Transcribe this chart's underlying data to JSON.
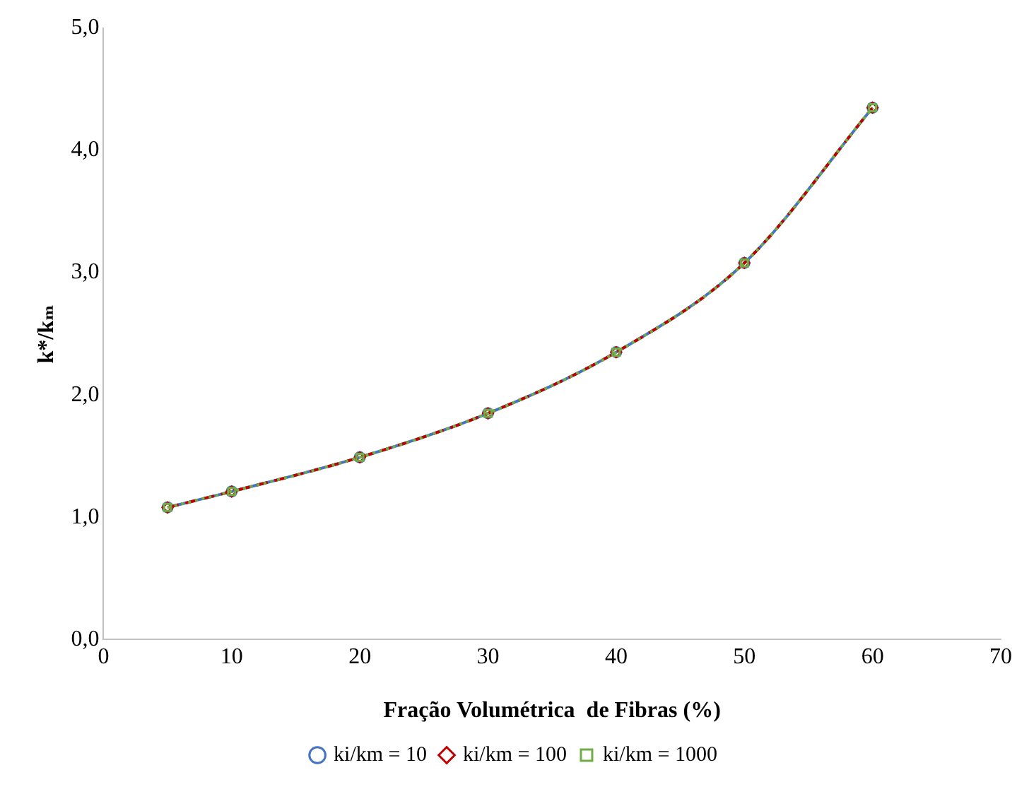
{
  "chart_data": {
    "type": "line",
    "xlabel": "Fração Volumétrica  de Fibras (%)",
    "ylabel": "k*/kₘ",
    "x": [
      5,
      10,
      20,
      30,
      40,
      50,
      60
    ],
    "series": [
      {
        "name": "ki/km = 10",
        "color": "#4472c4",
        "marker": "circle",
        "line_style": "solid",
        "values": [
          1.08,
          1.21,
          1.49,
          1.85,
          2.35,
          3.08,
          4.35
        ]
      },
      {
        "name": "ki/km = 100",
        "color": "#c00000",
        "marker": "diamond",
        "line_style": "dashed",
        "values": [
          1.08,
          1.21,
          1.49,
          1.85,
          2.35,
          3.08,
          4.35
        ]
      },
      {
        "name": "ki/km = 1000",
        "color": "#70ad47",
        "marker": "square",
        "line_style": "dotted",
        "values": [
          1.08,
          1.21,
          1.49,
          1.85,
          2.35,
          3.08,
          4.35
        ]
      }
    ],
    "xlim": [
      0,
      70
    ],
    "xticks": [
      0,
      10,
      20,
      30,
      40,
      50,
      60,
      70
    ],
    "ylim": [
      0,
      5
    ],
    "yticks": [
      {
        "value": 0,
        "label": "0,0"
      },
      {
        "value": 1,
        "label": "1,0"
      },
      {
        "value": 2,
        "label": "2,0"
      },
      {
        "value": 3,
        "label": "3,0"
      },
      {
        "value": 4,
        "label": "4,0"
      },
      {
        "value": 5,
        "label": "5,0"
      }
    ],
    "grid": false,
    "legend": "bottom"
  }
}
